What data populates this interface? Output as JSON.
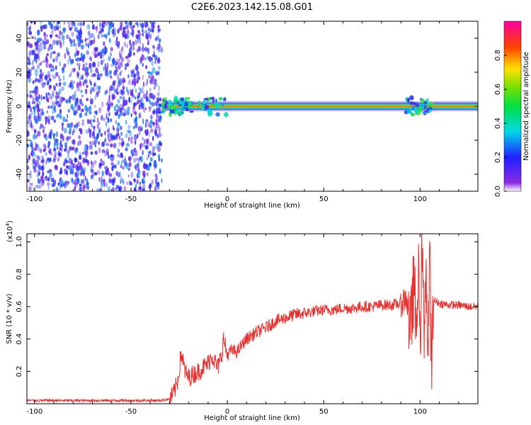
{
  "figure": {
    "title": "C2E6.2023.142.15.08.G01"
  },
  "chart_data": [
    {
      "type": "heatmap",
      "xlabel": "Height of straight line (km)",
      "ylabel": "Frequency (Hz)",
      "xlim": [
        -104,
        130
      ],
      "ylim": [
        -50,
        50
      ],
      "xticks": [
        -100,
        -50,
        0,
        50,
        100
      ],
      "yticks": [
        -40,
        -20,
        0,
        20,
        40
      ],
      "colorbar": {
        "label": "Normalized spectral amplitude",
        "range": [
          0.0,
          1.0
        ],
        "ticks": [
          0.0,
          0.2,
          0.4,
          0.6,
          0.8
        ],
        "colormap": "rainbow (violet-blue-cyan-green-yellow-red-magenta)"
      },
      "regions": [
        {
          "name": "noise",
          "x": [
            -104,
            -34
          ],
          "freq": [
            -50,
            50
          ],
          "amplitude": [
            0.05,
            0.3
          ]
        },
        {
          "name": "carrier",
          "x": [
            -34,
            130
          ],
          "freq": [
            -1,
            1
          ],
          "peak_amplitude": 0.85
        }
      ]
    },
    {
      "type": "line",
      "xlabel": "Height of straight line (km)",
      "ylabel": "SNR (10 * v/v)",
      "y_multiplier": "(x10",
      "y_multiplier_exp": "4",
      "xlim": [
        -104,
        130
      ],
      "ylim": [
        0,
        1.05
      ],
      "xticks": [
        -100,
        -50,
        0,
        50,
        100
      ],
      "yticks": [
        0.2,
        0.4,
        0.6,
        0.8,
        1.0
      ],
      "line_color": "#e8302e",
      "series": [
        {
          "x": [
            -104,
            -60,
            -35,
            -30,
            -28,
            -26,
            -25,
            -24,
            -22,
            -20,
            -18,
            -15,
            -12,
            -10,
            -8,
            -5,
            -3,
            -2,
            0,
            2,
            5,
            8,
            10,
            15,
            20,
            25,
            30,
            35,
            40,
            45,
            50,
            55,
            60,
            65,
            70,
            75,
            80,
            85,
            90,
            93,
            95,
            97,
            98,
            99,
            100,
            101,
            102,
            103,
            104,
            105,
            106,
            107,
            110,
            115,
            120,
            125,
            130
          ],
          "y": [
            0.02,
            0.02,
            0.02,
            0.03,
            0.06,
            0.13,
            0.2,
            0.32,
            0.2,
            0.16,
            0.18,
            0.2,
            0.23,
            0.25,
            0.3,
            0.22,
            0.3,
            0.4,
            0.3,
            0.33,
            0.32,
            0.37,
            0.4,
            0.44,
            0.47,
            0.51,
            0.53,
            0.55,
            0.56,
            0.57,
            0.58,
            0.58,
            0.59,
            0.59,
            0.6,
            0.6,
            0.61,
            0.61,
            0.62,
            0.66,
            0.42,
            0.8,
            0.35,
            0.9,
            0.3,
            1.02,
            0.4,
            0.95,
            0.25,
            0.85,
            0.2,
            0.64,
            0.62,
            0.61,
            0.61,
            0.6,
            0.6
          ]
        }
      ]
    }
  ]
}
